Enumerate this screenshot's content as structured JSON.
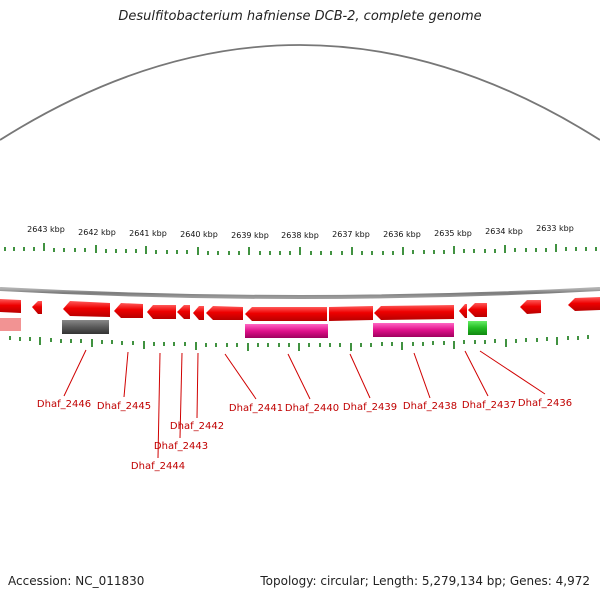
{
  "title": "Desulfitobacterium hafniense DCB-2, complete genome",
  "footer": {
    "accession": "Accession: NC_011830",
    "summary": "Topology: circular; Length: 5,279,134 bp; Genes: 4,972"
  },
  "colors": {
    "gene": "#e00000",
    "pink_feature": "#e0108a",
    "gray_feature": "#555555",
    "green_feature": "#22bb22",
    "ticks": "#117711",
    "backbone": "#808080",
    "label": "#c00000"
  },
  "scale_labels": [
    "2643 kbp",
    "2642 kbp",
    "2641 kbp",
    "2640 kbp",
    "2639 kbp",
    "2638 kbp",
    "2637 kbp",
    "2636 kbp",
    "2635 kbp",
    "2634 kbp",
    "2633 kbp"
  ],
  "gene_labels": [
    "Dhaf_2446",
    "Dhaf_2445",
    "Dhaf_2444",
    "Dhaf_2443",
    "Dhaf_2442",
    "Dhaf_2441",
    "Dhaf_2440",
    "Dhaf_2439",
    "Dhaf_2438",
    "Dhaf_2437",
    "Dhaf_2436"
  ]
}
